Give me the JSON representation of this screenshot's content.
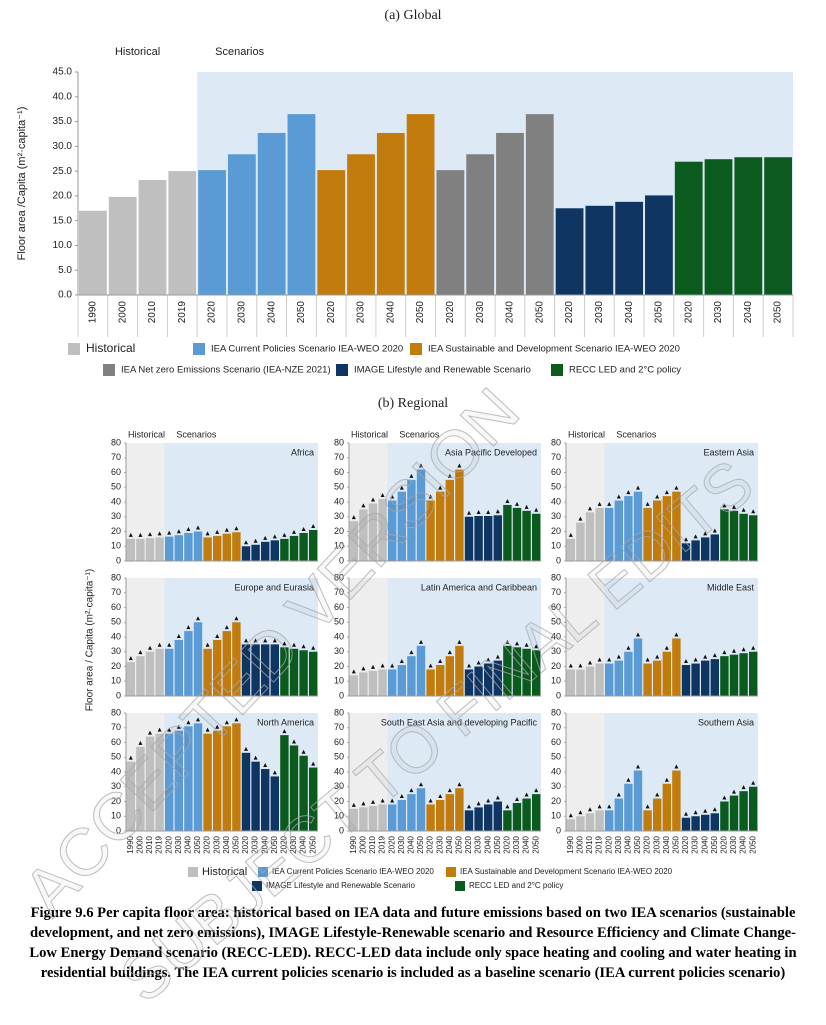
{
  "chart_data": [
    {
      "type": "bar",
      "title": "(a)  Global",
      "ylabel": "Floor area /Capita (m²·capita⁻¹)",
      "period_labels": [
        "Historical",
        "Scenarios"
      ],
      "ylim": [
        0,
        45
      ],
      "yticks": [
        {
          "value": 0,
          "label": "0.0"
        },
        {
          "value": 5,
          "label": "5.0"
        },
        {
          "value": 10,
          "label": "10.0"
        },
        {
          "value": 15,
          "label": "15.0"
        },
        {
          "value": 20,
          "label": "20.0"
        },
        {
          "value": 25,
          "label": "25.0"
        },
        {
          "value": 30,
          "label": "30.0"
        },
        {
          "value": 35,
          "label": "35.0"
        },
        {
          "value": 40,
          "label": "40.0"
        },
        {
          "value": 45,
          "label": "45.0"
        }
      ],
      "series": [
        {
          "name": "Historical",
          "color": "#bfbfbf",
          "categories": [
            "1990",
            "2000",
            "2010",
            "2019"
          ],
          "values": [
            17,
            19.8,
            23.2,
            25
          ]
        },
        {
          "name": "IEA Current Policies Scenario IEA-WEO 2020",
          "color": "#5b9bd5",
          "categories": [
            "2020",
            "2030",
            "2040",
            "2050"
          ],
          "values": [
            25.2,
            28.4,
            32.7,
            36.5
          ]
        },
        {
          "name": "IEA Sustainable and Development Scenario IEA-WEO 2020",
          "color": "#c27c0e",
          "categories": [
            "2020",
            "2030",
            "2040",
            "2050"
          ],
          "values": [
            25.2,
            28.4,
            32.7,
            36.5
          ]
        },
        {
          "name": "IEA Net zero Emissions Scenario (IEA-NZE 2021)",
          "color": "#808080",
          "categories": [
            "2020",
            "2030",
            "2040",
            "2050"
          ],
          "values": [
            25.2,
            28.4,
            32.7,
            36.5
          ]
        },
        {
          "name": "IMAGE Lifestyle and Renewable Scenario",
          "color": "#0f3563",
          "categories": [
            "2020",
            "2030",
            "2040",
            "2050"
          ],
          "values": [
            17.5,
            18,
            18.8,
            20.1
          ]
        },
        {
          "name": "RECC LED and 2°C policy",
          "color": "#0b5a1e",
          "categories": [
            "2020",
            "2030",
            "2040",
            "2050"
          ],
          "values": [
            26.9,
            27.4,
            27.8,
            27.8
          ]
        }
      ]
    },
    {
      "type": "bar",
      "title": "(b)  Regional",
      "ylabel": "Floor area / Capita (m²·capita⁻¹)",
      "period_labels": [
        "Historical",
        "Scenarios"
      ],
      "ylim": [
        0,
        80
      ],
      "yticks": [
        0,
        10,
        20,
        30,
        40,
        50,
        60,
        70,
        80
      ],
      "categories": [
        "1990",
        "2000",
        "2010",
        "2019",
        "2020",
        "2030",
        "2040",
        "2050",
        "2020",
        "2030",
        "2040",
        "2050",
        "2020",
        "2030",
        "2040",
        "2050",
        "2020",
        "2030",
        "2040",
        "2050"
      ],
      "legend": [
        {
          "name": "Historical",
          "color": "#bfbfbf"
        },
        {
          "name": "IEA Current Policies Scenario IEA-WEO 2020",
          "color": "#5b9bd5"
        },
        {
          "name": "IEA Sustainable and Development Scenario IEA-WEO 2020",
          "color": "#c27c0e"
        },
        {
          "name": "IMAGE Lifestyle and Renewable Scenario",
          "color": "#0f3563"
        },
        {
          "name": "RECC LED and 2°C policy",
          "color": "#0b5a1e"
        }
      ],
      "panels": [
        {
          "title": "Africa",
          "series": [
            [
              15,
              15,
              15.5,
              16
            ],
            [
              16.5,
              17.5,
              19,
              20
            ],
            [
              16,
              17,
              18.5,
              19.5
            ],
            [
              10,
              11,
              13,
              14
            ],
            [
              15,
              17,
              19,
              21
            ]
          ]
        },
        {
          "title": "Asia Pacific Developed",
          "series": [
            [
              27,
              35,
              39,
              42
            ],
            [
              41,
              47,
              55,
              62
            ],
            [
              41,
              47,
              55,
              62
            ],
            [
              30,
              30.5,
              30.5,
              31
            ],
            [
              38,
              36,
              34,
              32
            ]
          ]
        },
        {
          "title": "Eastern Asia",
          "series": [
            [
              15,
              26,
              33,
              36
            ],
            [
              36,
              41,
              44,
              47
            ],
            [
              36,
              41,
              44,
              47
            ],
            [
              12,
              14,
              16,
              18
            ],
            [
              35,
              34,
              32,
              31
            ]
          ]
        },
        {
          "title": "Europe and Eurasia",
          "series": [
            [
              23,
              27,
              30,
              32
            ],
            [
              32,
              38,
              44,
              50
            ],
            [
              32,
              38,
              44,
              50
            ],
            [
              35,
              35,
              35,
              35
            ],
            [
              33,
              32,
              31,
              30
            ]
          ]
        },
        {
          "title": "Latin America and Caribbean",
          "series": [
            [
              14,
              16,
              17,
              18
            ],
            [
              18,
              21,
              27,
              34
            ],
            [
              18,
              21,
              27,
              34
            ],
            [
              18,
              20,
              22,
              24
            ],
            [
              34,
              33,
              32,
              31
            ]
          ]
        },
        {
          "title": "Middle East",
          "series": [
            [
              18,
              18,
              20,
              22
            ],
            [
              22,
              24,
              30,
              39
            ],
            [
              22,
              24,
              30,
              39
            ],
            [
              21,
              22,
              24,
              25
            ],
            [
              27,
              28,
              29,
              30
            ]
          ]
        },
        {
          "title": "North America",
          "series": [
            [
              47,
              57,
              64,
              66
            ],
            [
              66,
              68,
              71,
              73
            ],
            [
              66,
              68,
              71,
              73
            ],
            [
              53,
              47,
              42,
              37
            ],
            [
              65,
              58,
              51,
              43
            ]
          ]
        },
        {
          "title": "South East Asia and developing Pacific",
          "series": [
            [
              15,
              16,
              17,
              18
            ],
            [
              18,
              21,
              25,
              29
            ],
            [
              18,
              21,
              25,
              29
            ],
            [
              14,
              16,
              18,
              20
            ],
            [
              14,
              19,
              22,
              25
            ]
          ]
        },
        {
          "title": "Southern Asia",
          "series": [
            [
              8,
              10,
              12,
              14
            ],
            [
              14,
              22,
              32,
              41
            ],
            [
              14,
              22,
              32,
              41
            ],
            [
              9,
              10,
              11,
              12
            ],
            [
              20,
              24,
              27,
              30
            ]
          ]
        }
      ]
    }
  ],
  "caption": "Figure 9.6 Per capita floor area: historical based on IEA data and future emissions based on two IEA scenarios (sustainable development, and net zero emissions), IMAGE Lifestyle-Renewable scenario and Resource Efficiency and Climate Change-Low Energy Demand scenario (RECC-LED). RECC-LED data include only space heating and cooling and water heating in residential buildings. The IEA current policies scenario is included as a baseline scenario (IEA current policies scenario)",
  "watermark": [
    "ACCEPTED VERSION",
    "SUBJECT TO FINAL EDITS"
  ]
}
